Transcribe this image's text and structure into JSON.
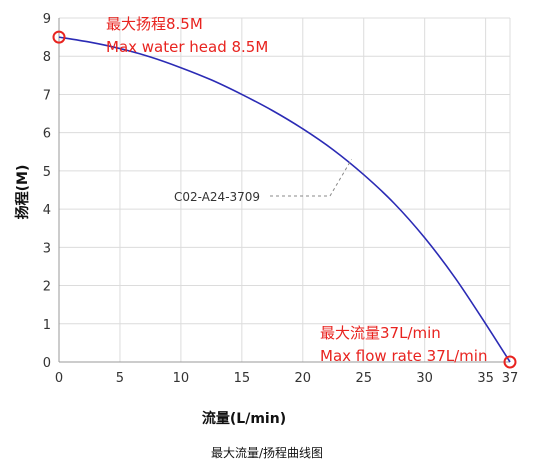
{
  "caption": "最大流量/扬程曲线图",
  "chart_data": {
    "type": "line",
    "xlabel": "流量(L/min)",
    "ylabel": "扬程(M)",
    "xlim": [
      0,
      37
    ],
    "ylim": [
      0,
      9
    ],
    "xticks": [
      0,
      5,
      10,
      15,
      20,
      25,
      30,
      35,
      37
    ],
    "yticks": [
      0,
      1,
      2,
      3,
      4,
      5,
      6,
      7,
      8,
      9
    ],
    "grid": true,
    "series": [
      {
        "name": "C02-A24-3709",
        "color": "#2b2bb5",
        "x": [
          0,
          2.5,
          5,
          7.5,
          10,
          12.5,
          15,
          17.5,
          20,
          22.5,
          25,
          27.5,
          30,
          32.5,
          35,
          37
        ],
        "y": [
          8.5,
          8.37,
          8.2,
          7.98,
          7.7,
          7.38,
          7.0,
          6.58,
          6.1,
          5.55,
          4.9,
          4.15,
          3.25,
          2.2,
          1.0,
          0.0
        ]
      }
    ],
    "annotations": {
      "max_head_cn": "最大扬程8.5M",
      "max_head_en": "Max water head 8.5M",
      "max_flow_cn": "最大流量37L/min",
      "max_flow_en": "Max flow rate 37L/min",
      "max_head_point": [
        0,
        8.5
      ],
      "max_flow_point": [
        37,
        0
      ],
      "callout_point": [
        24,
        5.3
      ],
      "color": "#e8231f"
    }
  }
}
